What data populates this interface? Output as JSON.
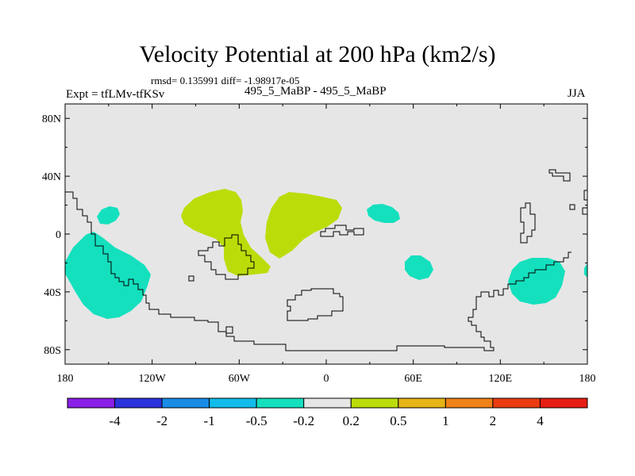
{
  "title": "Velocity Potential at 200 hPa (km2/s)",
  "stats_line": "rmsd= 0.135991 diff= -1.98917e-05",
  "experiment_label": "Expt = tfLMv-tfKSv",
  "subtitle": "495_5_MaBP - 495_5_MaBP",
  "season": "JJA",
  "axes": {
    "x_ticks": [
      "180",
      "120W",
      "60W",
      "0",
      "60E",
      "120E",
      "180"
    ],
    "y_ticks": [
      "80N",
      "40N",
      "0",
      "40S",
      "80S"
    ]
  },
  "colorbar": {
    "labels": [
      "-4",
      "-2",
      "-1",
      "-0.5",
      "-0.2",
      "0.2",
      "0.5",
      "1",
      "2",
      "4"
    ],
    "colors": [
      "#8a1ee6",
      "#2a32dc",
      "#1a8ce6",
      "#12bcea",
      "#14e0be",
      "#e6e6e6",
      "#bcdc0a",
      "#e6b414",
      "#f08218",
      "#ea3c10",
      "#e61e14"
    ]
  },
  "colors": {
    "background": "#e6e6e6",
    "negative_anomaly": "#14e0be",
    "positive_anomaly": "#bcdc0a",
    "coastline": "#000000"
  }
}
